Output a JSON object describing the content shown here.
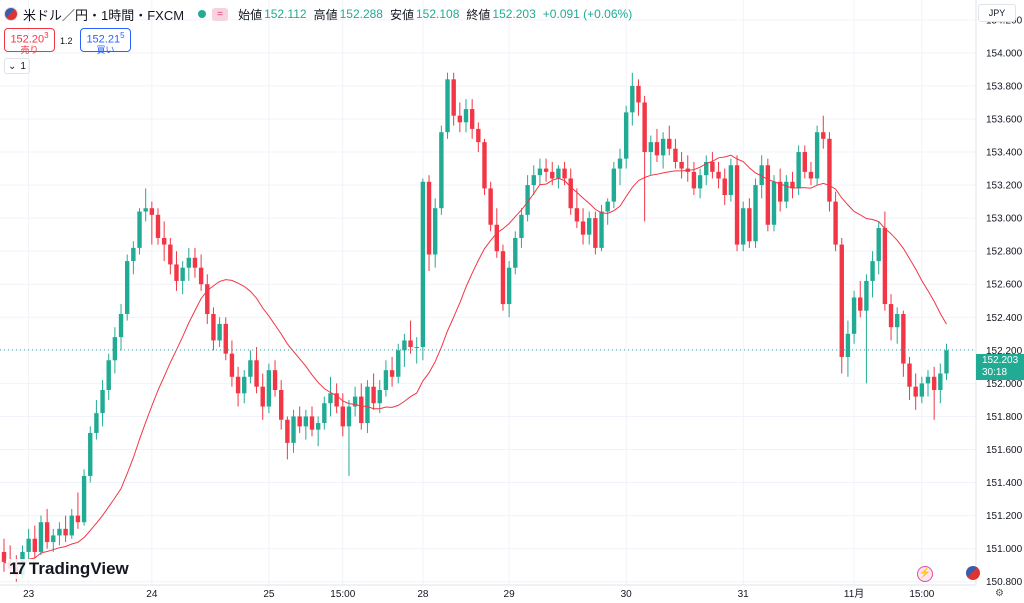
{
  "header": {
    "symbol": "米ドル／円・1時間・FXCM",
    "eq_icon": "equals-icon",
    "open_label": "始値",
    "open": "152.112",
    "high_label": "高値",
    "high": "152.288",
    "low_label": "安値",
    "low": "152.108",
    "close_label": "終値",
    "close": "152.203",
    "change": "+0.091 (+0.06%)",
    "up_color": "#22ab94",
    "down_color": "#f23645"
  },
  "trade": {
    "sell_price_main": "152.20",
    "sell_price_sup": "3",
    "sell_label": "売り",
    "spread": "1.2",
    "buy_price_main": "152.21",
    "buy_price_sup": "5",
    "buy_label": "買い"
  },
  "interval_badge": "1",
  "currency": "JPY",
  "price_tag": {
    "price": "152.203",
    "countdown": "30:18"
  },
  "logo": "TradingView",
  "chart_data": {
    "type": "candlestick",
    "ylim": [
      150.78,
      154.32
    ],
    "y_ticks": [
      "154.200",
      "154.000",
      "153.800",
      "153.600",
      "153.400",
      "153.200",
      "153.000",
      "152.800",
      "152.600",
      "152.400",
      "152.200",
      "152.000",
      "151.800",
      "151.600",
      "151.400",
      "151.200",
      "151.000",
      "150.800"
    ],
    "x_ticks": [
      "23",
      "24",
      "25",
      "15:00",
      "28",
      "29",
      "30",
      "31",
      "11月",
      "15:00"
    ],
    "x_tick_bars": [
      4,
      24,
      43,
      55,
      68,
      82,
      101,
      120,
      138,
      149
    ],
    "last_price_line": 152.203,
    "ohlc": [
      [
        150.98,
        151.06,
        150.86,
        150.92
      ],
      [
        150.92,
        151.02,
        150.83,
        150.88
      ],
      [
        150.88,
        150.96,
        150.8,
        150.84
      ],
      [
        150.84,
        151.02,
        150.82,
        150.98
      ],
      [
        150.98,
        151.12,
        150.92,
        151.06
      ],
      [
        151.06,
        151.14,
        150.94,
        150.98
      ],
      [
        150.98,
        151.2,
        150.96,
        151.16
      ],
      [
        151.16,
        151.24,
        151.0,
        151.04
      ],
      [
        151.04,
        151.12,
        150.98,
        151.08
      ],
      [
        151.08,
        151.16,
        151.02,
        151.12
      ],
      [
        151.12,
        151.2,
        151.04,
        151.08
      ],
      [
        151.08,
        151.24,
        151.06,
        151.2
      ],
      [
        151.2,
        151.34,
        151.12,
        151.16
      ],
      [
        151.16,
        151.48,
        151.14,
        151.44
      ],
      [
        151.44,
        151.74,
        151.4,
        151.7
      ],
      [
        151.7,
        151.9,
        151.66,
        151.82
      ],
      [
        151.82,
        152.02,
        151.74,
        151.96
      ],
      [
        151.96,
        152.18,
        151.9,
        152.14
      ],
      [
        152.14,
        152.34,
        152.06,
        152.28
      ],
      [
        152.28,
        152.48,
        152.2,
        152.42
      ],
      [
        152.42,
        152.78,
        152.38,
        152.74
      ],
      [
        152.74,
        152.86,
        152.66,
        152.82
      ],
      [
        152.82,
        153.06,
        152.78,
        153.04
      ],
      [
        153.04,
        153.18,
        152.98,
        153.06
      ],
      [
        153.06,
        153.1,
        152.84,
        153.02
      ],
      [
        153.02,
        153.06,
        152.84,
        152.88
      ],
      [
        152.88,
        152.98,
        152.74,
        152.84
      ],
      [
        152.84,
        152.88,
        152.66,
        152.72
      ],
      [
        152.72,
        152.8,
        152.56,
        152.62
      ],
      [
        152.62,
        152.74,
        152.54,
        152.7
      ],
      [
        152.7,
        152.82,
        152.62,
        152.76
      ],
      [
        152.76,
        152.82,
        152.64,
        152.7
      ],
      [
        152.7,
        152.78,
        152.56,
        152.6
      ],
      [
        152.6,
        152.66,
        152.36,
        152.42
      ],
      [
        152.42,
        152.46,
        152.2,
        152.26
      ],
      [
        152.26,
        152.4,
        152.22,
        152.36
      ],
      [
        152.36,
        152.4,
        152.14,
        152.18
      ],
      [
        152.18,
        152.26,
        151.98,
        152.04
      ],
      [
        152.04,
        152.1,
        151.86,
        151.94
      ],
      [
        151.94,
        152.08,
        151.88,
        152.04
      ],
      [
        152.04,
        152.2,
        152.0,
        152.14
      ],
      [
        152.14,
        152.22,
        151.94,
        151.98
      ],
      [
        151.98,
        152.06,
        151.78,
        151.86
      ],
      [
        151.86,
        152.12,
        151.82,
        152.08
      ],
      [
        152.08,
        152.14,
        151.92,
        151.96
      ],
      [
        151.96,
        152.02,
        151.72,
        151.78
      ],
      [
        151.78,
        151.8,
        151.54,
        151.64
      ],
      [
        151.64,
        151.84,
        151.58,
        151.8
      ],
      [
        151.8,
        151.86,
        151.7,
        151.74
      ],
      [
        151.74,
        151.84,
        151.66,
        151.8
      ],
      [
        151.8,
        151.86,
        151.68,
        151.72
      ],
      [
        151.72,
        151.8,
        151.62,
        151.76
      ],
      [
        151.76,
        151.92,
        151.72,
        151.88
      ],
      [
        151.88,
        152.04,
        151.8,
        151.94
      ],
      [
        151.94,
        152.0,
        151.82,
        151.86
      ],
      [
        151.86,
        151.94,
        151.68,
        151.74
      ],
      [
        151.74,
        151.9,
        151.44,
        151.86
      ],
      [
        151.86,
        151.98,
        151.8,
        151.92
      ],
      [
        151.92,
        152.0,
        151.72,
        151.76
      ],
      [
        151.76,
        152.02,
        151.7,
        151.98
      ],
      [
        151.98,
        152.06,
        151.84,
        151.88
      ],
      [
        151.88,
        152.02,
        151.82,
        151.96
      ],
      [
        151.96,
        152.14,
        151.92,
        152.08
      ],
      [
        152.08,
        152.16,
        151.98,
        152.04
      ],
      [
        152.04,
        152.24,
        152.0,
        152.2
      ],
      [
        152.2,
        152.3,
        152.1,
        152.26
      ],
      [
        152.26,
        152.38,
        152.18,
        152.22
      ],
      [
        152.22,
        152.28,
        152.12,
        152.22
      ],
      [
        152.22,
        153.24,
        152.14,
        153.22
      ],
      [
        153.22,
        153.26,
        152.68,
        152.78
      ],
      [
        152.78,
        153.12,
        152.7,
        153.06
      ],
      [
        153.06,
        153.56,
        153.02,
        153.52
      ],
      [
        153.52,
        153.88,
        153.48,
        153.84
      ],
      [
        153.84,
        153.88,
        153.56,
        153.62
      ],
      [
        153.62,
        153.7,
        153.52,
        153.58
      ],
      [
        153.58,
        153.72,
        153.52,
        153.66
      ],
      [
        153.66,
        153.72,
        153.48,
        153.54
      ],
      [
        153.54,
        153.58,
        153.4,
        153.46
      ],
      [
        153.46,
        153.48,
        153.14,
        153.18
      ],
      [
        153.18,
        153.22,
        152.92,
        152.96
      ],
      [
        152.96,
        153.06,
        152.76,
        152.8
      ],
      [
        152.8,
        152.84,
        152.44,
        152.48
      ],
      [
        152.48,
        152.74,
        152.4,
        152.7
      ],
      [
        152.7,
        152.92,
        152.66,
        152.88
      ],
      [
        152.88,
        153.06,
        152.82,
        153.02
      ],
      [
        153.02,
        153.26,
        152.98,
        153.2
      ],
      [
        153.2,
        153.32,
        153.14,
        153.26
      ],
      [
        153.26,
        153.36,
        153.2,
        153.3
      ],
      [
        153.3,
        153.36,
        153.22,
        153.28
      ],
      [
        153.28,
        153.34,
        153.2,
        153.24
      ],
      [
        153.24,
        153.32,
        153.18,
        153.3
      ],
      [
        153.3,
        153.34,
        153.2,
        153.24
      ],
      [
        153.24,
        153.3,
        153.02,
        153.06
      ],
      [
        153.06,
        153.18,
        152.94,
        152.98
      ],
      [
        152.98,
        153.06,
        152.84,
        152.9
      ],
      [
        152.9,
        153.04,
        152.84,
        153.0
      ],
      [
        153.0,
        153.04,
        152.78,
        152.82
      ],
      [
        152.82,
        153.08,
        152.8,
        153.04
      ],
      [
        153.04,
        153.12,
        152.96,
        153.1
      ],
      [
        153.1,
        153.34,
        153.06,
        153.3
      ],
      [
        153.3,
        153.42,
        153.2,
        153.36
      ],
      [
        153.36,
        153.68,
        153.3,
        153.64
      ],
      [
        153.64,
        153.88,
        153.56,
        153.8
      ],
      [
        153.8,
        153.84,
        153.62,
        153.7
      ],
      [
        153.7,
        153.74,
        152.98,
        153.4
      ],
      [
        153.4,
        153.5,
        153.26,
        153.46
      ],
      [
        153.46,
        153.54,
        153.34,
        153.38
      ],
      [
        153.38,
        153.52,
        153.3,
        153.48
      ],
      [
        153.48,
        153.56,
        153.38,
        153.42
      ],
      [
        153.42,
        153.48,
        153.3,
        153.34
      ],
      [
        153.34,
        153.4,
        153.24,
        153.3
      ],
      [
        153.3,
        153.38,
        153.22,
        153.28
      ],
      [
        153.28,
        153.34,
        153.14,
        153.18
      ],
      [
        153.18,
        153.3,
        153.12,
        153.26
      ],
      [
        153.26,
        153.38,
        153.2,
        153.34
      ],
      [
        153.34,
        153.4,
        153.24,
        153.28
      ],
      [
        153.28,
        153.34,
        153.18,
        153.24
      ],
      [
        153.24,
        153.3,
        153.08,
        153.14
      ],
      [
        153.14,
        153.36,
        153.1,
        153.32
      ],
      [
        153.32,
        153.38,
        152.8,
        152.84
      ],
      [
        152.84,
        153.1,
        152.8,
        153.06
      ],
      [
        153.06,
        153.12,
        152.82,
        152.86
      ],
      [
        152.86,
        153.24,
        152.82,
        153.2
      ],
      [
        153.2,
        153.38,
        153.12,
        153.32
      ],
      [
        153.32,
        153.36,
        152.92,
        152.96
      ],
      [
        152.96,
        153.26,
        152.92,
        153.22
      ],
      [
        153.22,
        153.3,
        153.04,
        153.1
      ],
      [
        153.1,
        153.26,
        153.06,
        153.22
      ],
      [
        153.22,
        153.28,
        153.12,
        153.18
      ],
      [
        153.18,
        153.44,
        153.14,
        153.4
      ],
      [
        153.4,
        153.44,
        153.24,
        153.28
      ],
      [
        153.28,
        153.34,
        153.2,
        153.24
      ],
      [
        153.24,
        153.56,
        153.2,
        153.52
      ],
      [
        153.52,
        153.62,
        153.42,
        153.48
      ],
      [
        153.48,
        153.52,
        153.04,
        153.1
      ],
      [
        153.1,
        153.16,
        152.8,
        152.84
      ],
      [
        152.84,
        152.88,
        152.06,
        152.16
      ],
      [
        152.16,
        152.38,
        152.04,
        152.3
      ],
      [
        152.3,
        152.56,
        152.24,
        152.52
      ],
      [
        152.52,
        152.62,
        152.4,
        152.44
      ],
      [
        152.44,
        152.66,
        152.0,
        152.62
      ],
      [
        152.62,
        152.8,
        152.52,
        152.74
      ],
      [
        152.74,
        152.98,
        152.66,
        152.94
      ],
      [
        152.94,
        153.04,
        152.44,
        152.48
      ],
      [
        152.48,
        152.54,
        152.26,
        152.34
      ],
      [
        152.34,
        152.46,
        152.24,
        152.42
      ],
      [
        152.42,
        152.44,
        152.04,
        152.12
      ],
      [
        152.12,
        152.16,
        151.9,
        151.98
      ],
      [
        151.98,
        152.06,
        151.84,
        151.92
      ],
      [
        151.92,
        152.04,
        151.88,
        152.0
      ],
      [
        152.0,
        152.08,
        151.92,
        152.04
      ],
      [
        152.04,
        152.1,
        151.78,
        151.96
      ],
      [
        151.96,
        152.12,
        151.88,
        152.06
      ],
      [
        152.06,
        152.24,
        152.02,
        152.2
      ]
    ],
    "ma": {
      "type": "moving-average",
      "period": 20,
      "color": "#f23645"
    }
  }
}
